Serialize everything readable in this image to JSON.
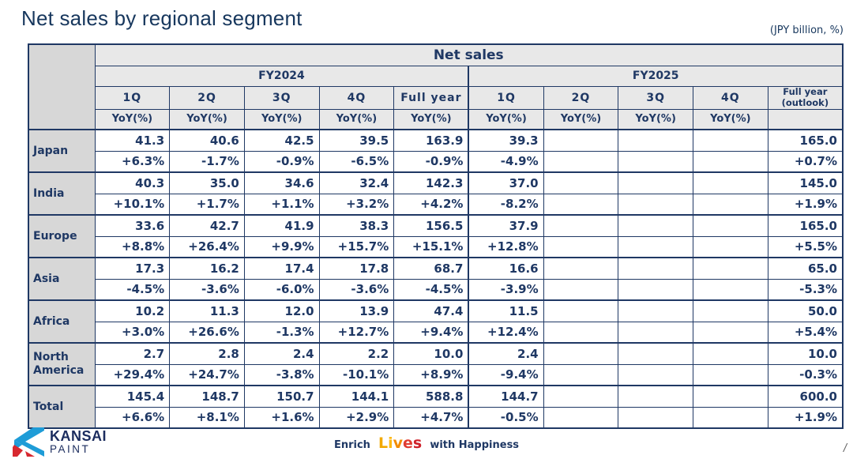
{
  "page": {
    "title": "Net sales by regional segment",
    "unit_note": "(JPY billion, %)"
  },
  "colors": {
    "navy_text": "#1f3864",
    "border_navy": "#1f3864",
    "header_bg": "#e8e8e8",
    "row_label_bg": "#d7d7d7",
    "logo_blue": "#1e9cd7",
    "logo_red": "#d7282f",
    "lives_letter_colors": [
      "#F2A900",
      "#FDB913",
      "#F28C00",
      "#E03C31",
      "#CE2029"
    ]
  },
  "table": {
    "title": "Net sales",
    "yoy_label": "YoY(%)",
    "groups": [
      {
        "label": "FY2024",
        "quarters": [
          "1Q",
          "2Q",
          "3Q",
          "4Q",
          "Full year"
        ]
      },
      {
        "label": "FY2025",
        "quarters": [
          "1Q",
          "2Q",
          "3Q",
          "4Q",
          "Full year\n(outlook)"
        ]
      }
    ],
    "rows": [
      {
        "region": "Japan",
        "fy2024": {
          "values": [
            "41.3",
            "40.6",
            "42.5",
            "39.5",
            "163.9"
          ],
          "yoy": [
            "+6.3%",
            "-1.7%",
            "-0.9%",
            "-6.5%",
            "-0.9%"
          ]
        },
        "fy2025": {
          "values": [
            "39.3",
            "",
            "",
            "",
            "165.0"
          ],
          "yoy": [
            "-4.9%",
            "",
            "",
            "",
            "+0.7%"
          ]
        }
      },
      {
        "region": "India",
        "fy2024": {
          "values": [
            "40.3",
            "35.0",
            "34.6",
            "32.4",
            "142.3"
          ],
          "yoy": [
            "+10.1%",
            "+1.7%",
            "+1.1%",
            "+3.2%",
            "+4.2%"
          ]
        },
        "fy2025": {
          "values": [
            "37.0",
            "",
            "",
            "",
            "145.0"
          ],
          "yoy": [
            "-8.2%",
            "",
            "",
            "",
            "+1.9%"
          ]
        }
      },
      {
        "region": "Europe",
        "fy2024": {
          "values": [
            "33.6",
            "42.7",
            "41.9",
            "38.3",
            "156.5"
          ],
          "yoy": [
            "+8.8%",
            "+26.4%",
            "+9.9%",
            "+15.7%",
            "+15.1%"
          ]
        },
        "fy2025": {
          "values": [
            "37.9",
            "",
            "",
            "",
            "165.0"
          ],
          "yoy": [
            "+12.8%",
            "",
            "",
            "",
            "+5.5%"
          ]
        }
      },
      {
        "region": "Asia",
        "fy2024": {
          "values": [
            "17.3",
            "16.2",
            "17.4",
            "17.8",
            "68.7"
          ],
          "yoy": [
            "-4.5%",
            "-3.6%",
            "-6.0%",
            "-3.6%",
            "-4.5%"
          ]
        },
        "fy2025": {
          "values": [
            "16.6",
            "",
            "",
            "",
            "65.0"
          ],
          "yoy": [
            "-3.9%",
            "",
            "",
            "",
            "-5.3%"
          ]
        }
      },
      {
        "region": "Africa",
        "fy2024": {
          "values": [
            "10.2",
            "11.3",
            "12.0",
            "13.9",
            "47.4"
          ],
          "yoy": [
            "+3.0%",
            "+26.6%",
            "-1.3%",
            "+12.7%",
            "+9.4%"
          ]
        },
        "fy2025": {
          "values": [
            "11.5",
            "",
            "",
            "",
            "50.0"
          ],
          "yoy": [
            "+12.4%",
            "",
            "",
            "",
            "+5.4%"
          ]
        }
      },
      {
        "region": "North America",
        "fy2024": {
          "values": [
            "2.7",
            "2.8",
            "2.4",
            "2.2",
            "10.0"
          ],
          "yoy": [
            "+29.4%",
            "+24.7%",
            "-3.8%",
            "-10.1%",
            "+8.9%"
          ]
        },
        "fy2025": {
          "values": [
            "2.4",
            "",
            "",
            "",
            "10.0"
          ],
          "yoy": [
            "-9.4%",
            "",
            "",
            "",
            "-0.3%"
          ]
        }
      },
      {
        "region": "Total",
        "fy2024": {
          "values": [
            "145.4",
            "148.7",
            "150.7",
            "144.1",
            "588.8"
          ],
          "yoy": [
            "+6.6%",
            "+8.1%",
            "+1.6%",
            "+2.9%",
            "+4.7%"
          ]
        },
        "fy2025": {
          "values": [
            "144.7",
            "",
            "",
            "",
            "600.0"
          ],
          "yoy": [
            "-0.5%",
            "",
            "",
            "",
            "+1.9%"
          ]
        }
      }
    ]
  },
  "footer": {
    "logo_top": "KANSAI",
    "logo_bottom": "PAINT",
    "tagline_prefix": "Enrich",
    "tagline_highlight": "Lives",
    "tagline_suffix": "with Happiness",
    "page_slash": "/"
  }
}
